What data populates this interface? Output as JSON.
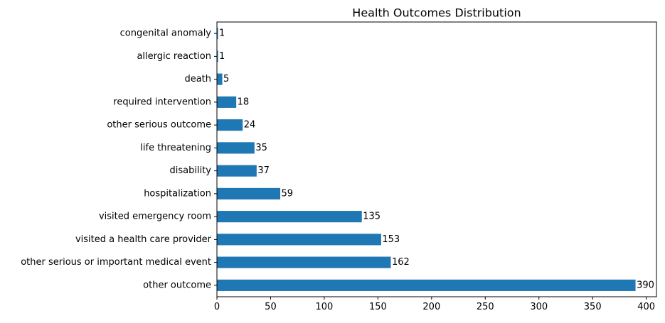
{
  "chart_data": {
    "type": "bar",
    "orientation": "horizontal",
    "title": "Health Outcomes Distribution",
    "xlabel": "",
    "ylabel": "",
    "categories": [
      "congenital anomaly",
      "allergic reaction",
      "death",
      "required intervention",
      "other serious outcome",
      "life threatening",
      "disability",
      "hospitalization",
      "visited emergency room",
      "visited a health care provider",
      "other serious or important medical event",
      "other outcome"
    ],
    "values": [
      1,
      1,
      5,
      18,
      24,
      35,
      37,
      59,
      135,
      153,
      162,
      390
    ],
    "xlim": [
      0,
      409.5
    ],
    "xticks": [
      0,
      50,
      100,
      150,
      200,
      250,
      300,
      350,
      400
    ],
    "grid": false,
    "bar_color": "#1f77b4",
    "data_labels": true
  }
}
